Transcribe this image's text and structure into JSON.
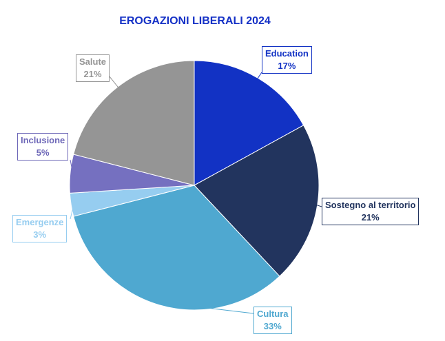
{
  "chart_data": {
    "type": "pie",
    "title": "EROGAZIONI LIBERALI 2024",
    "title_color": "#1531c6",
    "slices": [
      {
        "label": "Education",
        "value": 17,
        "display": "17%",
        "color": "#1232c4",
        "label_color": "#1232c4"
      },
      {
        "label": "Sostegno al territorio",
        "value": 21,
        "display": "21%",
        "color": "#22345e",
        "label_color": "#22345e"
      },
      {
        "label": "Cultura",
        "value": 33,
        "display": "33%",
        "color": "#4fa8d0",
        "label_color": "#4fa8d0"
      },
      {
        "label": "Emergenze",
        "value": 3,
        "display": "3%",
        "color": "#96cdf0",
        "label_color": "#96cdf0"
      },
      {
        "label": "Inclusione",
        "value": 5,
        "display": "5%",
        "color": "#7570c0",
        "label_color": "#6e68b8"
      },
      {
        "label": "Salute",
        "value": 21,
        "display": "21%",
        "color": "#959595",
        "label_color": "#959595"
      }
    ]
  }
}
